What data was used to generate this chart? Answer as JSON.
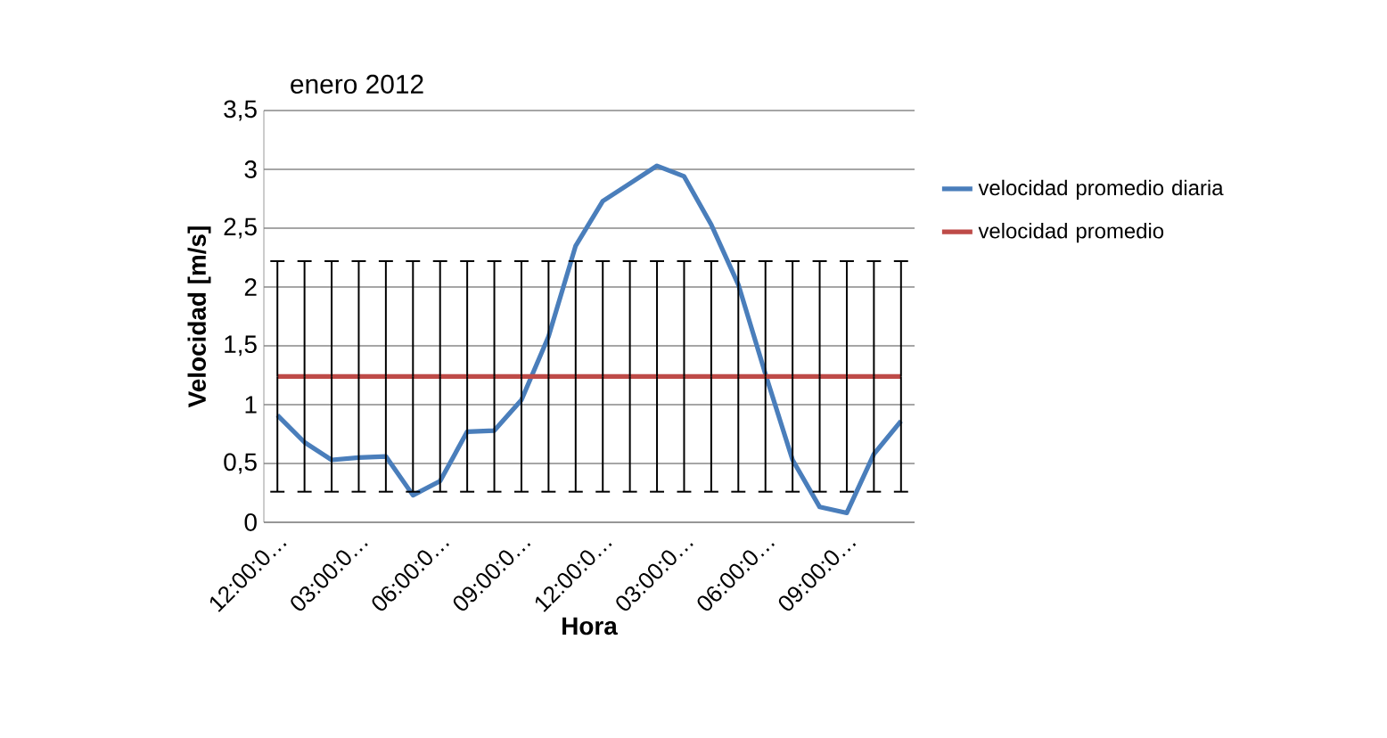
{
  "chart_data": {
    "type": "line",
    "title": "enero 2012",
    "xlabel": "Hora",
    "ylabel": "Velocidad [m/s]",
    "categories": [
      "12:00:0…",
      null,
      null,
      "03:00:0…",
      null,
      null,
      "06:00:0…",
      null,
      null,
      "09:00:0…",
      null,
      null,
      "12:00:0…",
      null,
      null,
      "03:00:0…",
      null,
      null,
      "06:00:0…",
      null,
      null,
      "09:00:0…",
      null,
      null
    ],
    "series": [
      {
        "name": "velocidad promedio diaria",
        "color": "#4a7ebb",
        "values": [
          0.91,
          0.68,
          0.53,
          0.55,
          0.56,
          0.23,
          0.35,
          0.77,
          0.78,
          1.04,
          1.58,
          2.35,
          2.73,
          2.88,
          3.03,
          2.94,
          2.53,
          2.02,
          1.26,
          0.53,
          0.13,
          0.08,
          0.58,
          0.86
        ]
      },
      {
        "name": "velocidad promedio",
        "color": "#be4b48",
        "values": [
          1.24,
          1.24,
          1.24,
          1.24,
          1.24,
          1.24,
          1.24,
          1.24,
          1.24,
          1.24,
          1.24,
          1.24,
          1.24,
          1.24,
          1.24,
          1.24,
          1.24,
          1.24,
          1.24,
          1.24,
          1.24,
          1.24,
          1.24,
          1.24
        ],
        "errors": [
          0.98,
          0.98,
          0.98,
          0.98,
          0.98,
          0.98,
          0.98,
          0.98,
          0.98,
          0.98,
          0.98,
          0.98,
          0.98,
          0.98,
          0.98,
          0.98,
          0.98,
          0.98,
          0.98,
          0.98,
          0.98,
          0.98,
          0.98,
          0.98
        ]
      }
    ],
    "ylim": [
      0,
      3.5
    ],
    "yticks": [
      0,
      {
        "value": 0.5,
        "label": "0,5"
      },
      1,
      {
        "value": 1.5,
        "label": "1,5"
      },
      2,
      {
        "value": 2.5,
        "label": "2,5"
      },
      3,
      {
        "value": 3.5,
        "label": "3,5"
      }
    ],
    "grid": "y",
    "legend": "right",
    "marker": "none",
    "line_style": "solid"
  }
}
